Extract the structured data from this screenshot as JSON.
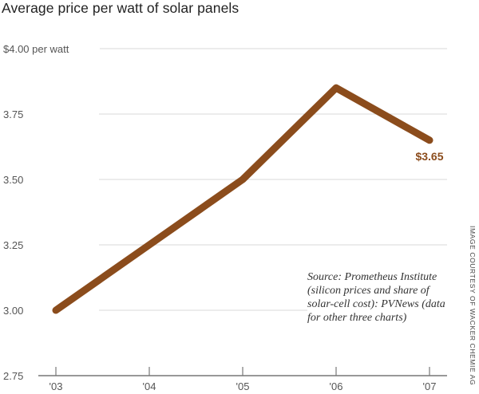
{
  "chart_data": {
    "type": "line",
    "title": "Average price per watt of solar panels",
    "xlabel": "",
    "ylabel": "",
    "categories": [
      "'03",
      "'04",
      "'05",
      "'06",
      "'07"
    ],
    "series": [
      {
        "name": "Average price per watt",
        "values": [
          3.0,
          3.25,
          3.5,
          3.85,
          3.65
        ],
        "color": "#8B4C1C"
      }
    ],
    "ylim": [
      2.75,
      4.0
    ],
    "yticks": [
      2.75,
      3.0,
      3.25,
      3.5,
      3.75,
      4.0
    ],
    "ytick_labels": [
      "2.75",
      "3.00",
      "3.25",
      "3.50",
      "3.75",
      "$4.00 per watt"
    ],
    "grid": true,
    "annotations": [
      {
        "text": "$3.65",
        "x": "'07",
        "y": 3.65
      }
    ],
    "source_note": "Source: Prometheus Institute (silicon prices and share of solar-cell cost): PVNews (data for other three charts)",
    "credit": "IMAGE COURTESY OF WACKER CHEMIE AG"
  }
}
